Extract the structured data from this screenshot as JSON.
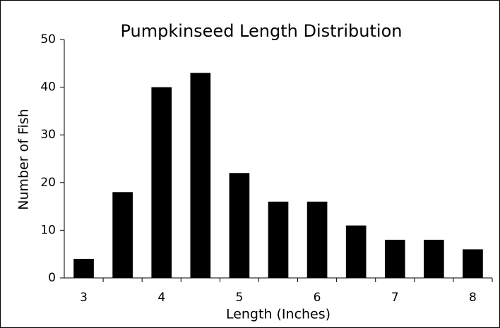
{
  "chart_data": {
    "type": "bar",
    "title": "Pumpkinseed Length Distribution",
    "x_label": "Length (Inches)",
    "y_label": "Number of Fish",
    "categories": [
      "3",
      null,
      "4",
      null,
      "5",
      null,
      "6",
      null,
      "7",
      null,
      "8"
    ],
    "values": [
      4,
      18,
      40,
      43,
      22,
      16,
      16,
      11,
      8,
      8,
      6
    ],
    "color": "#000000",
    "ylim": [
      0,
      50
    ],
    "yticks": [
      0,
      10,
      20,
      30,
      40,
      50
    ],
    "grid": false
  }
}
